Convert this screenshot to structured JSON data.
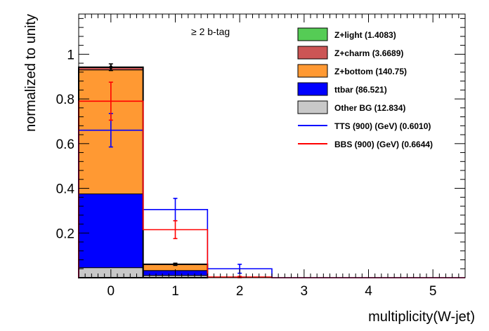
{
  "chart_data": {
    "type": "bar",
    "subtype": "stacked-histogram-with-overlays",
    "categories": [
      "0",
      "1",
      "2",
      "3",
      "4",
      "5"
    ],
    "bins": [
      [
        -0.5,
        0.5
      ],
      [
        0.5,
        1.5
      ],
      [
        1.5,
        2.5
      ],
      [
        2.5,
        3.5
      ],
      [
        3.5,
        4.5
      ],
      [
        4.5,
        5.5
      ]
    ],
    "xlabel": "multiplicity(W-jet)",
    "ylabel": "normalized to unity",
    "xlim": [
      -0.5,
      5.5
    ],
    "ylim": [
      0,
      1.18
    ],
    "xticks": [
      0,
      1,
      2,
      3,
      4,
      5
    ],
    "yticks": [
      0.2,
      0.4,
      0.6,
      0.8,
      1
    ],
    "annotation": "≥ 2 b-tag",
    "legend_placement": "top-right",
    "stack": [
      {
        "name": "Other BG (12.834)",
        "color": "#c8c8c8",
        "values": [
          0.045,
          0.01,
          0.0,
          0.0,
          0.0,
          0.0
        ]
      },
      {
        "name": "ttbar (86.521)",
        "color": "#0000ff",
        "values": [
          0.33,
          0.022,
          0.0,
          0.0,
          0.0,
          0.0
        ]
      },
      {
        "name": "Z+bottom (140.75)",
        "color": "#ff9933",
        "values": [
          0.555,
          0.028,
          0.0,
          0.0,
          0.0,
          0.0
        ]
      },
      {
        "name": "Z+charm (3.6689)",
        "color": "#cc5555",
        "values": [
          0.01,
          0.0,
          0.0,
          0.0,
          0.0,
          0.0
        ]
      },
      {
        "name": "Z+light (1.4083)",
        "color": "#55cc55",
        "values": [
          0.002,
          0.0,
          0.0,
          0.0,
          0.0,
          0.0
        ]
      }
    ],
    "stack_total_errors": [
      0.015,
      0.005,
      0.0,
      0.0,
      0.0,
      0.0
    ],
    "overlays": [
      {
        "name": "TTS (900) (GeV) (0.6010)",
        "color": "#0000ff",
        "values": [
          0.66,
          0.305,
          0.04,
          0.0,
          0.0,
          0.0
        ],
        "errors": [
          0.075,
          0.05,
          0.02,
          0.0,
          0.0,
          0.0
        ]
      },
      {
        "name": "BBS (900) (GeV) (0.6644)",
        "color": "#ff0000",
        "values": [
          0.79,
          0.215,
          0.003,
          0.0,
          0.0,
          0.0
        ],
        "errors": [
          0.085,
          0.04,
          0.003,
          0.0,
          0.0,
          0.0
        ]
      }
    ]
  }
}
